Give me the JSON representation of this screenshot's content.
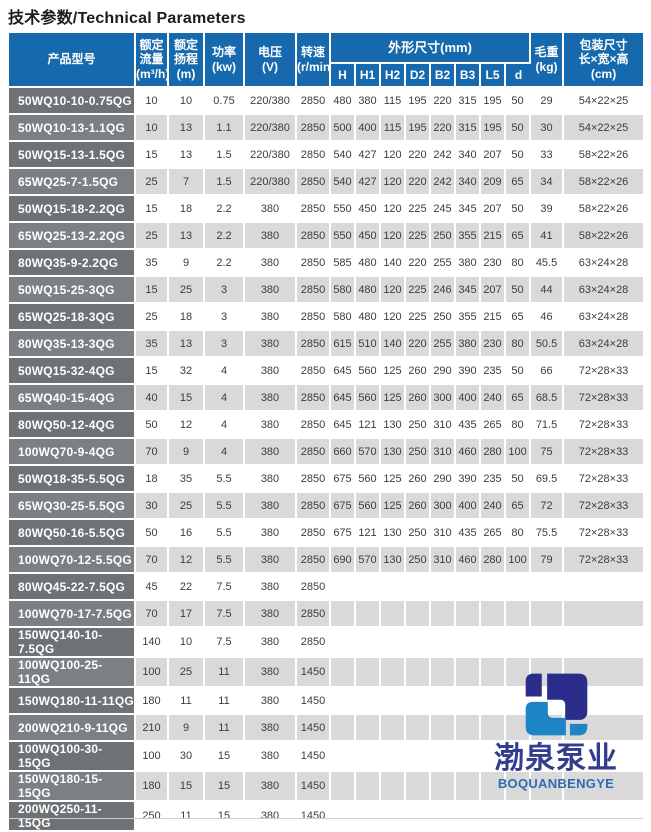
{
  "page": {
    "title": "技术参数/Technical Parameters"
  },
  "colors": {
    "header_blue": "#1569ac",
    "row_gray": "#d9d9d9",
    "model_dark": "#6e7275",
    "model_light": "#7c8084"
  },
  "logo": {
    "chinese": "渤泉泵业",
    "english": "BOQUANBENGYE",
    "colors": {
      "navy": "#2b2d8a",
      "blue": "#1d85c6",
      "text_cn": "#333d90",
      "text_en": "#2e6cb2"
    }
  },
  "table": {
    "columns": {
      "model": "产品型号",
      "flow": "额定\n流量\n(m³/h)",
      "head": "额定\n扬程\n(m)",
      "power": "功率\n(kw)",
      "voltage": "电压\n(V)",
      "speed": "转速\n(r/min)",
      "dims_group": "外形尺寸(mm)",
      "dim_subs": [
        "H",
        "H1",
        "H2",
        "D2",
        "B2",
        "B3",
        "L5",
        "d"
      ],
      "weight": "毛重\n(kg)",
      "package": "包装尺寸\n长×宽×高\n(cm)"
    },
    "rows": [
      {
        "model": "50WQ10-10-0.75QG",
        "flow": "10",
        "head": "10",
        "power": "0.75",
        "voltage": "220/380",
        "speed": "2850",
        "dims": [
          "480",
          "380",
          "115",
          "195",
          "220",
          "315",
          "195",
          "50"
        ],
        "weight": "29",
        "package": "54×22×25"
      },
      {
        "model": "50WQ10-13-1.1QG",
        "flow": "10",
        "head": "13",
        "power": "1.1",
        "voltage": "220/380",
        "speed": "2850",
        "dims": [
          "500",
          "400",
          "115",
          "195",
          "220",
          "315",
          "195",
          "50"
        ],
        "weight": "30",
        "package": "54×22×25"
      },
      {
        "model": "50WQ15-13-1.5QG",
        "flow": "15",
        "head": "13",
        "power": "1.5",
        "voltage": "220/380",
        "speed": "2850",
        "dims": [
          "540",
          "427",
          "120",
          "220",
          "242",
          "340",
          "207",
          "50"
        ],
        "weight": "33",
        "package": "58×22×26"
      },
      {
        "model": "65WQ25-7-1.5QG",
        "flow": "25",
        "head": "7",
        "power": "1.5",
        "voltage": "220/380",
        "speed": "2850",
        "dims": [
          "540",
          "427",
          "120",
          "220",
          "242",
          "340",
          "209",
          "65"
        ],
        "weight": "34",
        "package": "58×22×26"
      },
      {
        "model": "50WQ15-18-2.2QG",
        "flow": "15",
        "head": "18",
        "power": "2.2",
        "voltage": "380",
        "speed": "2850",
        "dims": [
          "550",
          "450",
          "120",
          "225",
          "245",
          "345",
          "207",
          "50"
        ],
        "weight": "39",
        "package": "58×22×26"
      },
      {
        "model": "65WQ25-13-2.2QG",
        "flow": "25",
        "head": "13",
        "power": "2.2",
        "voltage": "380",
        "speed": "2850",
        "dims": [
          "550",
          "450",
          "120",
          "225",
          "250",
          "355",
          "215",
          "65"
        ],
        "weight": "41",
        "package": "58×22×26"
      },
      {
        "model": "80WQ35-9-2.2QG",
        "flow": "35",
        "head": "9",
        "power": "2.2",
        "voltage": "380",
        "speed": "2850",
        "dims": [
          "585",
          "480",
          "140",
          "220",
          "255",
          "380",
          "230",
          "80"
        ],
        "weight": "45.5",
        "package": "63×24×28"
      },
      {
        "model": "50WQ15-25-3QG",
        "flow": "15",
        "head": "25",
        "power": "3",
        "voltage": "380",
        "speed": "2850",
        "dims": [
          "580",
          "480",
          "120",
          "225",
          "246",
          "345",
          "207",
          "50"
        ],
        "weight": "44",
        "package": "63×24×28"
      },
      {
        "model": "65WQ25-18-3QG",
        "flow": "25",
        "head": "18",
        "power": "3",
        "voltage": "380",
        "speed": "2850",
        "dims": [
          "580",
          "480",
          "120",
          "225",
          "250",
          "355",
          "215",
          "65"
        ],
        "weight": "46",
        "package": "63×24×28"
      },
      {
        "model": "80WQ35-13-3QG",
        "flow": "35",
        "head": "13",
        "power": "3",
        "voltage": "380",
        "speed": "2850",
        "dims": [
          "615",
          "510",
          "140",
          "220",
          "255",
          "380",
          "230",
          "80"
        ],
        "weight": "50.5",
        "package": "63×24×28"
      },
      {
        "model": "50WQ15-32-4QG",
        "flow": "15",
        "head": "32",
        "power": "4",
        "voltage": "380",
        "speed": "2850",
        "dims": [
          "645",
          "560",
          "125",
          "260",
          "290",
          "390",
          "235",
          "50"
        ],
        "weight": "66",
        "package": "72×28×33"
      },
      {
        "model": "65WQ40-15-4QG",
        "flow": "40",
        "head": "15",
        "power": "4",
        "voltage": "380",
        "speed": "2850",
        "dims": [
          "645",
          "560",
          "125",
          "260",
          "300",
          "400",
          "240",
          "65"
        ],
        "weight": "68.5",
        "package": "72×28×33"
      },
      {
        "model": "80WQ50-12-4QG",
        "flow": "50",
        "head": "12",
        "power": "4",
        "voltage": "380",
        "speed": "2850",
        "dims": [
          "645",
          "121",
          "130",
          "250",
          "310",
          "435",
          "265",
          "80"
        ],
        "weight": "71.5",
        "package": "72×28×33"
      },
      {
        "model": "100WQ70-9-4QG",
        "flow": "70",
        "head": "9",
        "power": "4",
        "voltage": "380",
        "speed": "2850",
        "dims": [
          "660",
          "570",
          "130",
          "250",
          "310",
          "460",
          "280",
          "100"
        ],
        "weight": "75",
        "package": "72×28×33"
      },
      {
        "model": "50WQ18-35-5.5QG",
        "flow": "18",
        "head": "35",
        "power": "5.5",
        "voltage": "380",
        "speed": "2850",
        "dims": [
          "675",
          "560",
          "125",
          "260",
          "290",
          "390",
          "235",
          "50"
        ],
        "weight": "69.5",
        "package": "72×28×33"
      },
      {
        "model": "65WQ30-25-5.5QG",
        "flow": "30",
        "head": "25",
        "power": "5.5",
        "voltage": "380",
        "speed": "2850",
        "dims": [
          "675",
          "560",
          "125",
          "260",
          "300",
          "400",
          "240",
          "65"
        ],
        "weight": "72",
        "package": "72×28×33"
      },
      {
        "model": "80WQ50-16-5.5QG",
        "flow": "50",
        "head": "16",
        "power": "5.5",
        "voltage": "380",
        "speed": "2850",
        "dims": [
          "675",
          "121",
          "130",
          "250",
          "310",
          "435",
          "265",
          "80"
        ],
        "weight": "75.5",
        "package": "72×28×33"
      },
      {
        "model": "100WQ70-12-5.5QG",
        "flow": "70",
        "head": "12",
        "power": "5.5",
        "voltage": "380",
        "speed": "2850",
        "dims": [
          "690",
          "570",
          "130",
          "250",
          "310",
          "460",
          "280",
          "100"
        ],
        "weight": "79",
        "package": "72×28×33"
      },
      {
        "model": "80WQ45-22-7.5QG",
        "flow": "45",
        "head": "22",
        "power": "7.5",
        "voltage": "380",
        "speed": "2850",
        "dims": [
          "",
          "",
          "",
          "",
          "",
          "",
          "",
          ""
        ],
        "weight": "",
        "package": ""
      },
      {
        "model": "100WQ70-17-7.5QG",
        "flow": "70",
        "head": "17",
        "power": "7.5",
        "voltage": "380",
        "speed": "2850",
        "dims": [
          "",
          "",
          "",
          "",
          "",
          "",
          "",
          ""
        ],
        "weight": "",
        "package": ""
      },
      {
        "model": "150WQ140-10-7.5QG",
        "flow": "140",
        "head": "10",
        "power": "7.5",
        "voltage": "380",
        "speed": "2850",
        "dims": [
          "",
          "",
          "",
          "",
          "",
          "",
          "",
          ""
        ],
        "weight": "",
        "package": ""
      },
      {
        "model": "100WQ100-25-11QG",
        "flow": "100",
        "head": "25",
        "power": "11",
        "voltage": "380",
        "speed": "1450",
        "dims": [
          "",
          "",
          "",
          "",
          "",
          "",
          "",
          ""
        ],
        "weight": "",
        "package": ""
      },
      {
        "model": "150WQ180-11-11QG",
        "flow": "180",
        "head": "11",
        "power": "11",
        "voltage": "380",
        "speed": "1450",
        "dims": [
          "",
          "",
          "",
          "",
          "",
          "",
          "",
          ""
        ],
        "weight": "",
        "package": ""
      },
      {
        "model": "200WQ210-9-11QG",
        "flow": "210",
        "head": "9",
        "power": "11",
        "voltage": "380",
        "speed": "1450",
        "dims": [
          "",
          "",
          "",
          "",
          "",
          "",
          "",
          ""
        ],
        "weight": "",
        "package": ""
      },
      {
        "model": "100WQ100-30-15QG",
        "flow": "100",
        "head": "30",
        "power": "15",
        "voltage": "380",
        "speed": "1450",
        "dims": [
          "",
          "",
          "",
          "",
          "",
          "",
          "",
          ""
        ],
        "weight": "",
        "package": ""
      },
      {
        "model": "150WQ180-15-15QG",
        "flow": "180",
        "head": "15",
        "power": "15",
        "voltage": "380",
        "speed": "1450",
        "dims": [
          "",
          "",
          "",
          "",
          "",
          "",
          "",
          ""
        ],
        "weight": "",
        "package": ""
      },
      {
        "model": "200WQ250-11-15QG",
        "flow": "250",
        "head": "11",
        "power": "15",
        "voltage": "380",
        "speed": "1450",
        "dims": [
          "",
          "",
          "",
          "",
          "",
          "",
          "",
          ""
        ],
        "weight": "",
        "package": ""
      }
    ]
  }
}
